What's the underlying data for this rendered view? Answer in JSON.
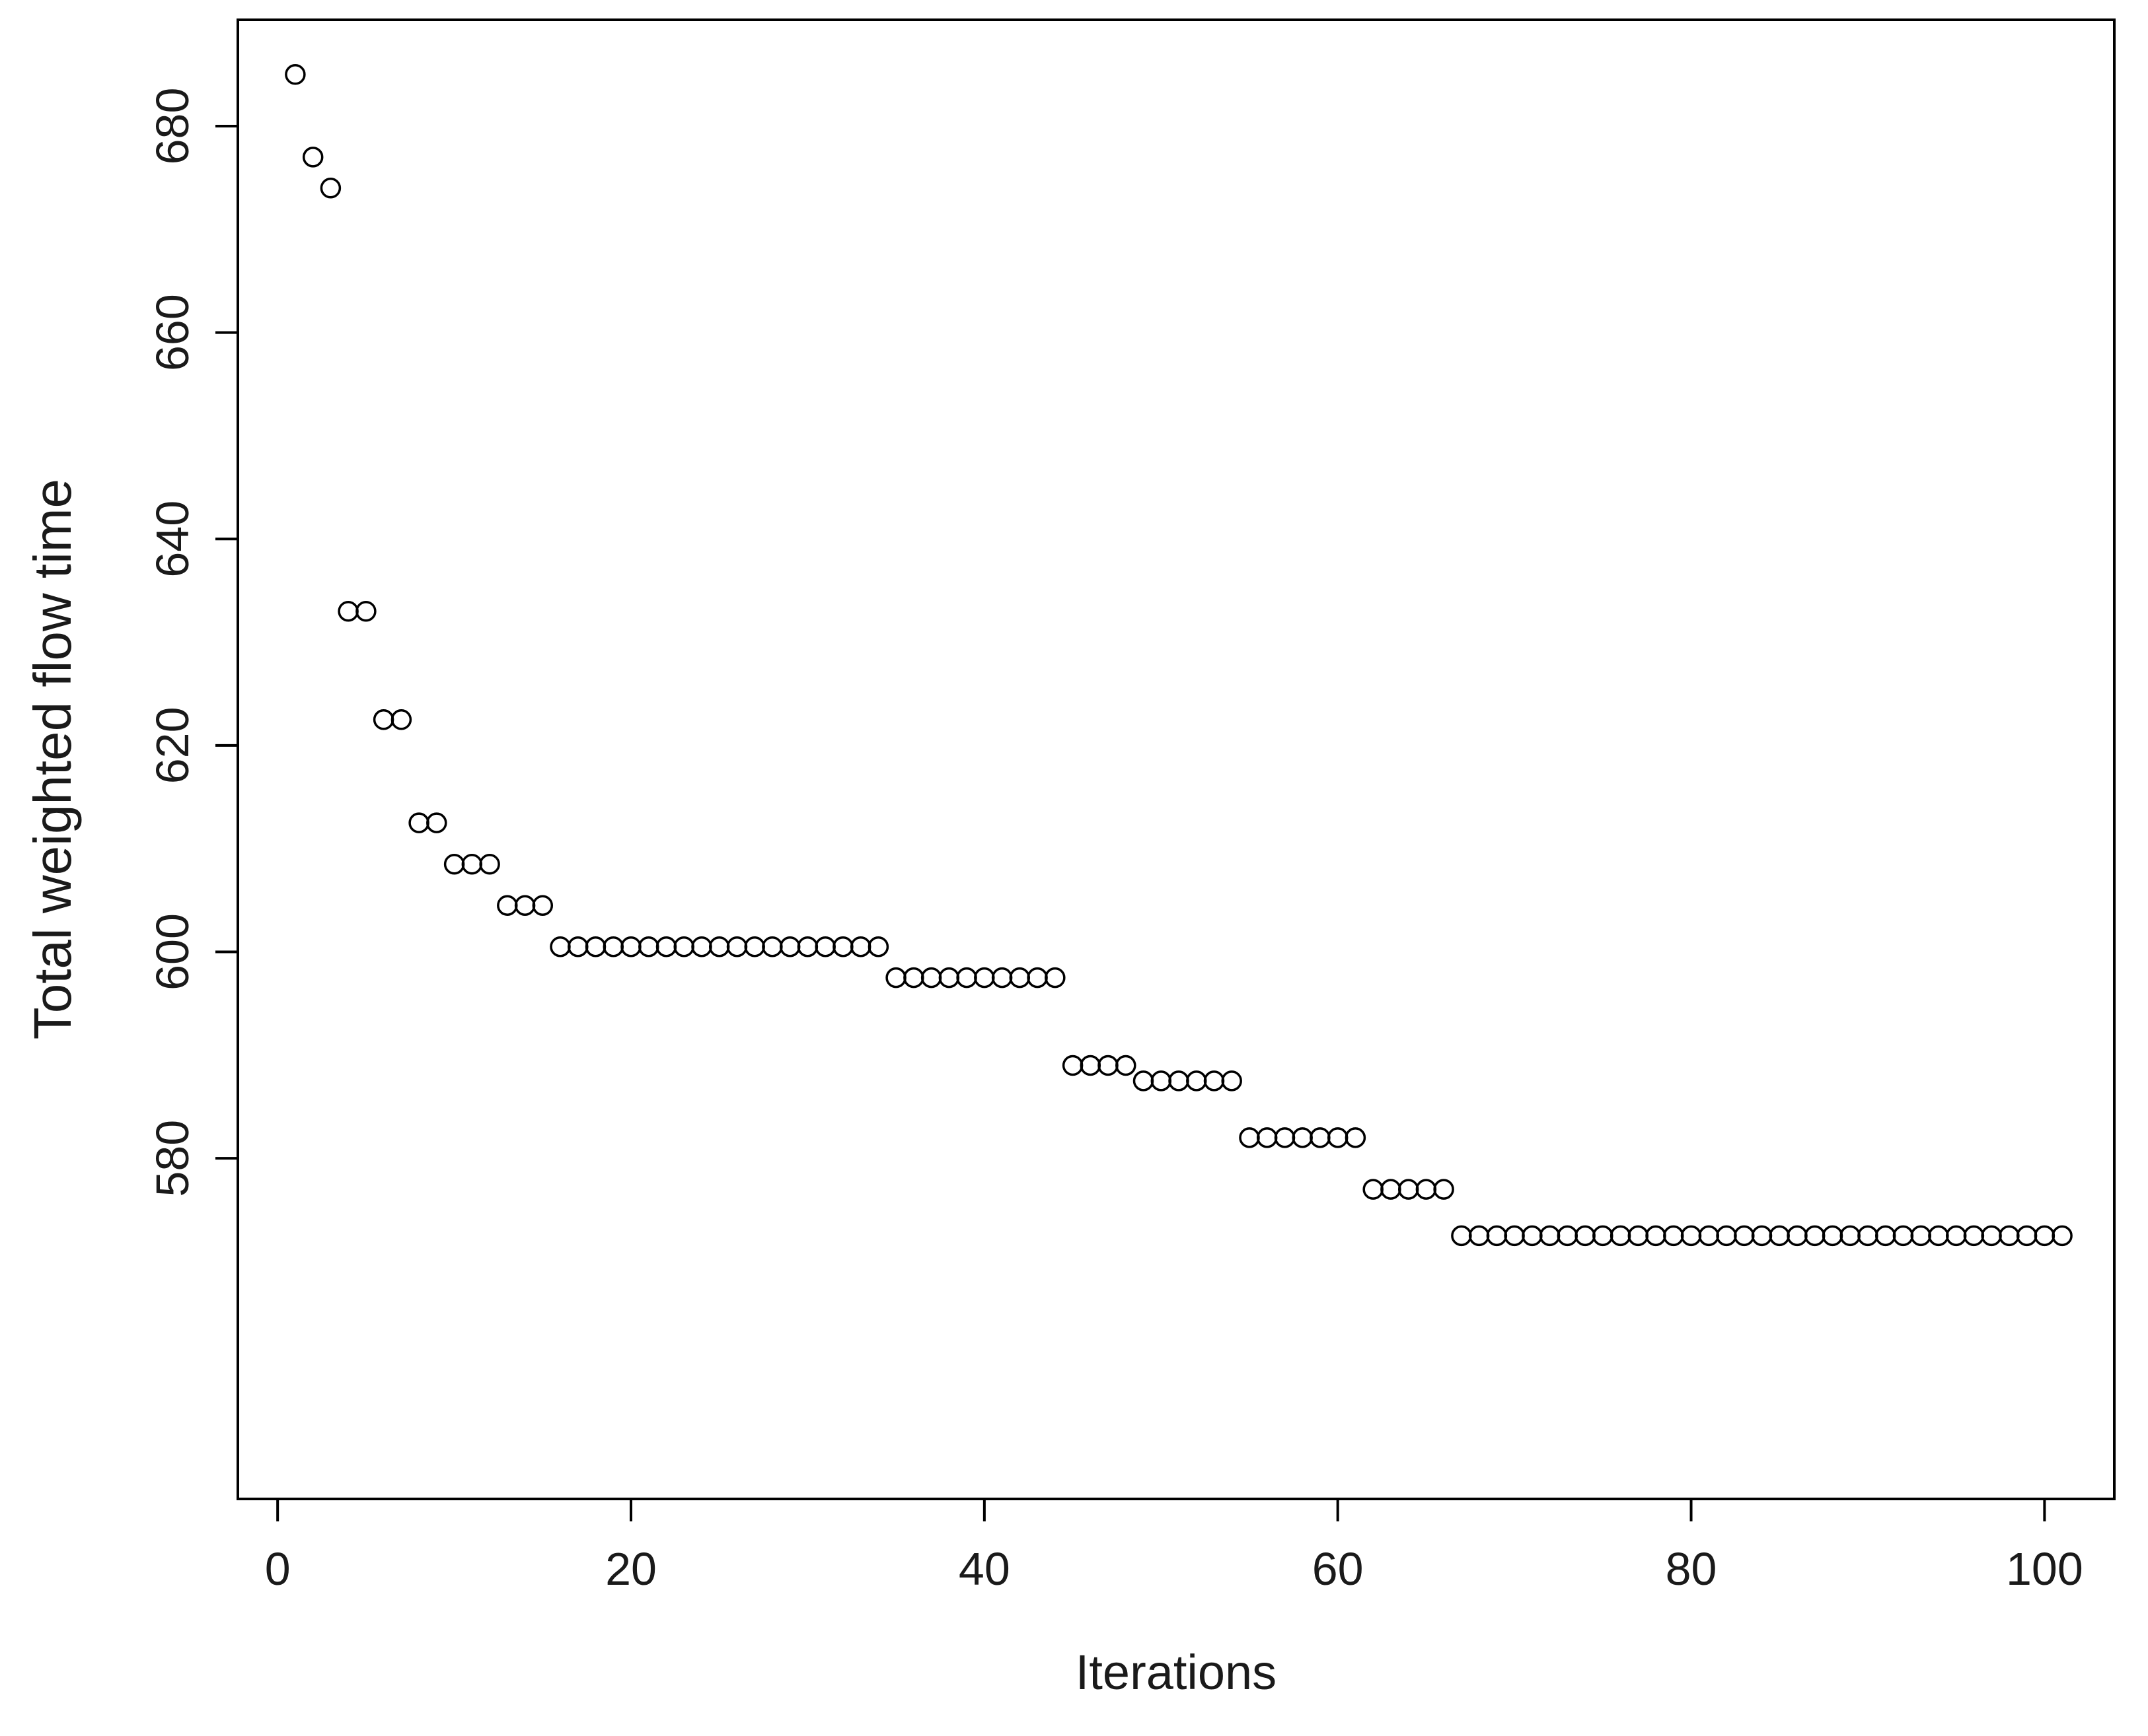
{
  "chart_data": {
    "type": "scatter",
    "title": "",
    "xlabel": "Iterations",
    "ylabel": "Total weighted flow time",
    "marker": "open-circle",
    "marker_color": "#000000",
    "grid": false,
    "legend": "none",
    "xlim": [
      -2.25,
      103.95
    ],
    "ylim": [
      547.0,
      690.3
    ],
    "x_ticks": [
      0,
      20,
      40,
      60,
      80,
      100
    ],
    "y_ticks": [
      580,
      600,
      620,
      640,
      660,
      680
    ],
    "x": [
      1,
      2,
      3,
      4,
      5,
      6,
      7,
      8,
      9,
      10,
      11,
      12,
      13,
      14,
      15,
      16,
      17,
      18,
      19,
      20,
      21,
      22,
      23,
      24,
      25,
      26,
      27,
      28,
      29,
      30,
      31,
      32,
      33,
      34,
      35,
      36,
      37,
      38,
      39,
      40,
      41,
      42,
      43,
      44,
      45,
      46,
      47,
      48,
      49,
      50,
      51,
      52,
      53,
      54,
      55,
      56,
      57,
      58,
      59,
      60,
      61,
      62,
      63,
      64,
      65,
      66,
      67,
      68,
      69,
      70,
      71,
      72,
      73,
      74,
      75,
      76,
      77,
      78,
      79,
      80,
      81,
      82,
      83,
      84,
      85,
      86,
      87,
      88,
      89,
      90,
      91,
      92,
      93,
      94,
      95,
      96,
      97,
      98,
      99,
      100,
      101
    ],
    "y": [
      685,
      677,
      674,
      633,
      633,
      622.5,
      622.5,
      612.5,
      612.5,
      608.5,
      608.5,
      608.5,
      604.5,
      604.5,
      604.5,
      600.5,
      600.5,
      600.5,
      600.5,
      600.5,
      600.5,
      600.5,
      600.5,
      600.5,
      600.5,
      600.5,
      600.5,
      600.5,
      600.5,
      600.5,
      600.5,
      600.5,
      600.5,
      600.5,
      597.5,
      597.5,
      597.5,
      597.5,
      597.5,
      597.5,
      597.5,
      597.5,
      597.5,
      597.5,
      589,
      589,
      589,
      589,
      587.5,
      587.5,
      587.5,
      587.5,
      587.5,
      587.5,
      582,
      582,
      582,
      582,
      582,
      582,
      582,
      577,
      577,
      577,
      577,
      577,
      572.5,
      572.5,
      572.5,
      572.5,
      572.5,
      572.5,
      572.5,
      572.5,
      572.5,
      572.5,
      572.5,
      572.5,
      572.5,
      572.5,
      572.5,
      572.5,
      572.5,
      572.5,
      572.5,
      572.5,
      572.5,
      572.5,
      572.5,
      572.5,
      572.5,
      572.5,
      572.5,
      572.5,
      572.5,
      572.5,
      572.5,
      572.5,
      572.5,
      572.5,
      572.5
    ]
  },
  "colors": {
    "background": "#ffffff",
    "axis": "#000000",
    "text": "#1a1a1a"
  }
}
